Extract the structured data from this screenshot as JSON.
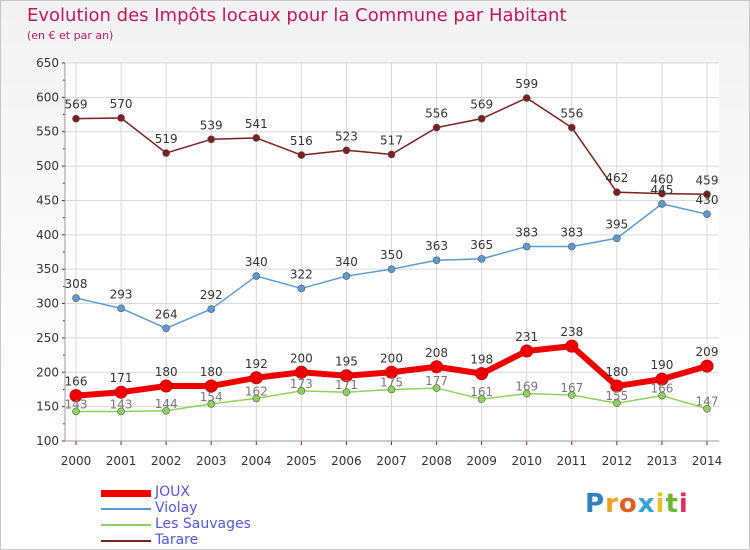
{
  "chart_data": {
    "type": "line",
    "title": "Evolution des Impôts locaux pour la Commune par Habitant",
    "subtitle": "(en € et par an)",
    "xlabel": "",
    "ylabel": "",
    "ylim": [
      100,
      650
    ],
    "yticks": [
      100,
      150,
      200,
      250,
      300,
      350,
      400,
      450,
      500,
      550,
      600,
      650
    ],
    "grid": true,
    "legend_position": "bottom-left",
    "x": [
      "2000",
      "2001",
      "2002",
      "2003",
      "2004",
      "2005",
      "2006",
      "2007",
      "2008",
      "2009",
      "2010",
      "2011",
      "2012",
      "2013",
      "2014"
    ],
    "series": [
      {
        "name": "JOUX",
        "color": "#ee0000",
        "values": [
          166,
          171,
          180,
          180,
          192,
          200,
          195,
          200,
          208,
          198,
          231,
          238,
          180,
          190,
          209
        ]
      },
      {
        "name": "Violay",
        "color": "#5b9bd5",
        "values": [
          308,
          293,
          264,
          292,
          340,
          322,
          340,
          350,
          363,
          365,
          383,
          383,
          395,
          445,
          430
        ]
      },
      {
        "name": "Les Sauvages",
        "color": "#8fd35a",
        "values": [
          143,
          143,
          144,
          154,
          162,
          173,
          171,
          175,
          177,
          161,
          169,
          167,
          155,
          166,
          147
        ]
      },
      {
        "name": "Tarare",
        "color": "#7b1f1f",
        "values": [
          569,
          570,
          519,
          539,
          541,
          516,
          523,
          517,
          556,
          569,
          599,
          556,
          462,
          460,
          459
        ]
      }
    ]
  },
  "logo": {
    "letters": [
      {
        "ch": "P",
        "color": "#2f7fc1"
      },
      {
        "ch": "r",
        "color": "#f0a020"
      },
      {
        "ch": "o",
        "color": "#e06020"
      },
      {
        "ch": "x",
        "color": "#3aa0d8"
      },
      {
        "ch": "i",
        "color": "#e8c020"
      },
      {
        "ch": "t",
        "color": "#70b830"
      },
      {
        "ch": "i",
        "color": "#d83060"
      }
    ]
  }
}
